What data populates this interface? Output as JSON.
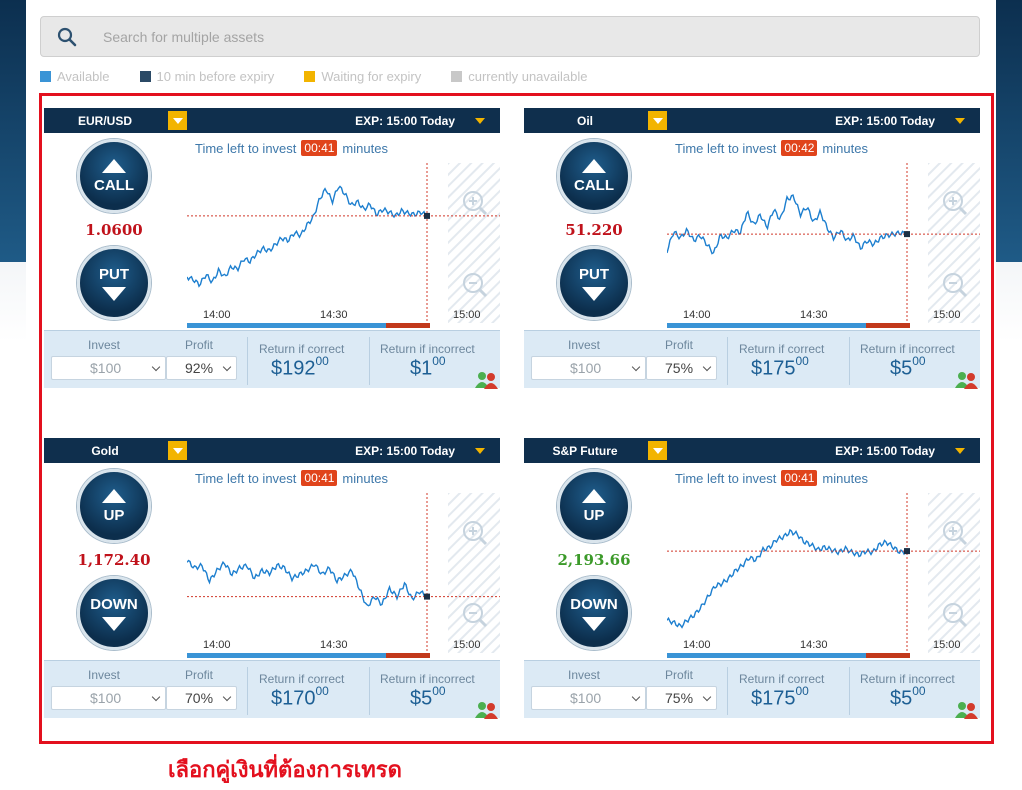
{
  "search": {
    "placeholder": "Search for multiple assets"
  },
  "legend": [
    {
      "label": "Available",
      "color": "#3a94d6"
    },
    {
      "label": "10 min before expiry",
      "color": "#2b4a66"
    },
    {
      "label": "Waiting for expiry",
      "color": "#f2b400"
    },
    {
      "label": "currently unavailable",
      "color": "#c8c8c8"
    }
  ],
  "common": {
    "exp_label": "EXP: 15:00 Today",
    "time_left_prefix": "Time left to invest",
    "time_left_suffix": "minutes",
    "invest_label": "Invest",
    "profit_label": "Profit",
    "return_correct_label": "Return if correct",
    "return_incorrect_label": "Return if incorrect",
    "invest_value": "$100",
    "time_ticks": [
      "14:00",
      "14:30",
      "15:00"
    ]
  },
  "cards": [
    {
      "asset": "EUR/USD",
      "up_label": "CALL",
      "down_label": "PUT",
      "price": "1.0600",
      "price_color": "#c0121b",
      "timer": "00:41",
      "profit": "92%",
      "return_correct": "$192",
      "return_correct_cents": "00",
      "return_incorrect": "$1",
      "return_incorrect_cents": "00"
    },
    {
      "asset": "Oil",
      "up_label": "CALL",
      "down_label": "PUT",
      "price": "51.220",
      "price_color": "#c0121b",
      "timer": "00:42",
      "profit": "75%",
      "return_correct": "$175",
      "return_correct_cents": "00",
      "return_incorrect": "$5",
      "return_incorrect_cents": "00"
    },
    {
      "asset": "Gold",
      "up_label": "UP",
      "down_label": "DOWN",
      "price": "1,172.40",
      "price_color": "#c0121b",
      "timer": "00:41",
      "profit": "70%",
      "return_correct": "$170",
      "return_correct_cents": "00",
      "return_incorrect": "$5",
      "return_incorrect_cents": "00"
    },
    {
      "asset": "S&P Future",
      "up_label": "UP",
      "down_label": "DOWN",
      "price": "2,193.66",
      "price_color": "#3c9a2a",
      "timer": "00:41",
      "profit": "75%",
      "return_correct": "$175",
      "return_correct_cents": "00",
      "return_incorrect": "$5",
      "return_incorrect_cents": "00"
    }
  ],
  "caption": "เลือกคู่เงินที่ต้องการเทรด"
}
